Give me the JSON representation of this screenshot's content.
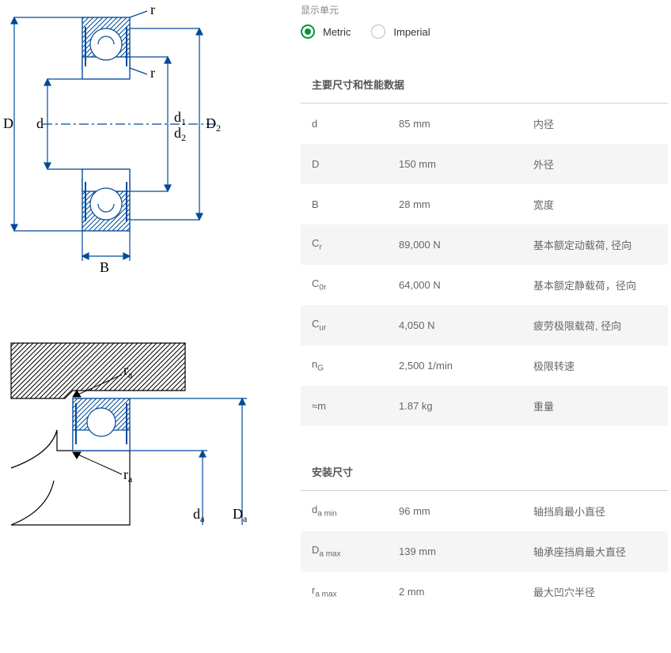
{
  "unit_selector": {
    "label": "显示单元",
    "options": {
      "metric": "Metric",
      "imperial": "Imperial"
    },
    "selected": "metric"
  },
  "sections": {
    "main": {
      "header": "主要尺寸和性能数据",
      "rows": [
        {
          "sym": "d",
          "sub": "",
          "suffix": "",
          "val": "85 mm",
          "desc": "内径"
        },
        {
          "sym": "D",
          "sub": "",
          "suffix": "",
          "val": "150 mm",
          "desc": "外径"
        },
        {
          "sym": "B",
          "sub": "",
          "suffix": "",
          "val": "28 mm",
          "desc": "宽度"
        },
        {
          "sym": "C",
          "sub": "r",
          "suffix": "",
          "val": "89,000 N",
          "desc": "基本额定动载荷, 径向"
        },
        {
          "sym": "C",
          "sub": "0r",
          "suffix": "",
          "val": "64,000 N",
          "desc": "基本额定静载荷，径向"
        },
        {
          "sym": "C",
          "sub": "ur",
          "suffix": "",
          "val": "4,050 N",
          "desc": "疲劳极限载荷, 径向"
        },
        {
          "sym": "n",
          "sub": "G",
          "suffix": "",
          "val": "2,500 1/min",
          "desc": "极限转速"
        },
        {
          "sym": "≈m",
          "sub": "",
          "suffix": "",
          "val": "1.87 kg",
          "desc": "重量"
        }
      ]
    },
    "mount": {
      "header": "安装尺寸",
      "rows": [
        {
          "sym": "d",
          "sub": "a",
          "suffix": " min",
          "val": "96 mm",
          "desc": "轴挡肩最小直径"
        },
        {
          "sym": "D",
          "sub": "a",
          "suffix": " max",
          "val": "139 mm",
          "desc": "轴承座挡肩最大直径"
        },
        {
          "sym": "r",
          "sub": "a",
          "suffix": " max",
          "val": "2 mm",
          "desc": "最大凹穴半径"
        }
      ]
    }
  },
  "diagrams": {
    "top_labels": {
      "D": "D",
      "d": "d",
      "d1": "d",
      "d1_sub": "1",
      "d2": "d",
      "d2_sub": "2",
      "D2": "D",
      "D2_sub": "2",
      "B": "B",
      "r_top": "r",
      "r_bottom": "r"
    },
    "bottom_labels": {
      "ra_top": "r",
      "ra_top_sub": "a",
      "ra_bottom": "r",
      "ra_bottom_sub": "a",
      "da": "d",
      "da_sub": "a",
      "Da": "D",
      "Da_sub": "a"
    },
    "colors": {
      "line": "#004a9a",
      "hatch": "#004a9a",
      "text": "#000000",
      "shaft": "#000000"
    }
  }
}
